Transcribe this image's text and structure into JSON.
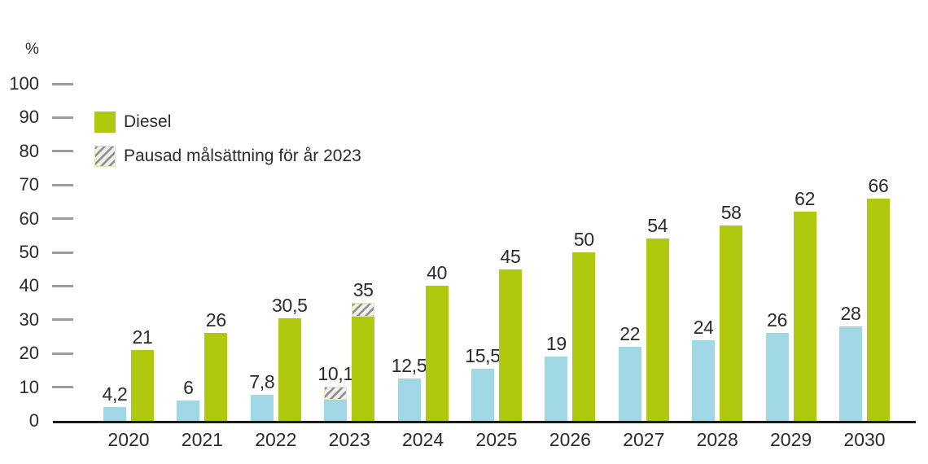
{
  "chart_data": {
    "type": "bar",
    "title": "",
    "ylabel": "%",
    "xlabel": "",
    "ylim": [
      0,
      100
    ],
    "ytick_step": 10,
    "grid": "tick-dashes-only",
    "legend_position": "top-left",
    "categories": [
      "2020",
      "2021",
      "2022",
      "2023",
      "2024",
      "2025",
      "2026",
      "2027",
      "2028",
      "2029",
      "2030"
    ],
    "series": [
      {
        "id": "blue",
        "color": "#a2d8e6",
        "values": [
          4.2,
          6,
          7.8,
          10.1,
          12.5,
          15.5,
          19,
          22,
          24,
          26,
          28
        ],
        "labels": [
          "4,2",
          "6",
          "7,8",
          "10,1",
          "12,5",
          "15,5",
          "19",
          "22",
          "24",
          "26",
          "28"
        ]
      },
      {
        "id": "diesel",
        "name": "Diesel",
        "color": "#b0c90e",
        "values": [
          21,
          26,
          30.5,
          35,
          40,
          45,
          50,
          54,
          58,
          62,
          66
        ],
        "labels": [
          "21",
          "26",
          "30,5",
          "35",
          "40",
          "45",
          "50",
          "54",
          "58",
          "62",
          "66"
        ]
      }
    ],
    "paused_target_2023": {
      "category": "2023",
      "legend_label": "Pausad målsättning för år 2023",
      "segments": [
        {
          "series": "blue",
          "from": 6.3,
          "to": 10.1
        },
        {
          "series": "diesel",
          "from": 30.8,
          "to": 35
        }
      ]
    },
    "legend": [
      {
        "label": "Diesel",
        "swatch": "diesel"
      },
      {
        "label": "Pausad målsättning för år 2023",
        "swatch": "hatched"
      }
    ],
    "colors": {
      "blue_bar": "#a2d8e6",
      "diesel_bar": "#b0c90e",
      "hatch_stripe": "#8d8d8d",
      "hatch_bg": "#f1f1ec",
      "axis_line": "#1b1b19",
      "tick_dash": "#9c9ca2",
      "text": "#2b2b2b"
    }
  }
}
